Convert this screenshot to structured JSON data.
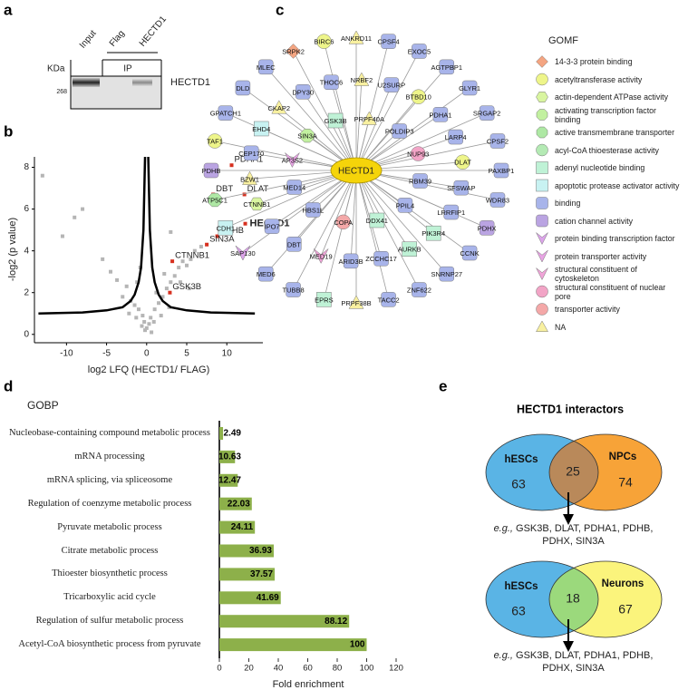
{
  "panel_labels": [
    "a",
    "b",
    "c",
    "d",
    "e"
  ],
  "blot": {
    "lanes": [
      "Input",
      "Flag",
      "HECTD1"
    ],
    "ip_label": "IP",
    "unit": "KDa",
    "marker": "268",
    "protein": "HECTD1"
  },
  "chart_data": [
    {
      "type": "scatter",
      "xlabel": "log2 LFQ (HECTD1/ FLAG)",
      "ylabel": "-log2 (p value)",
      "xlim": [
        -14,
        14.5
      ],
      "ylim": [
        -0.4,
        8.5
      ],
      "xticks": [
        -10,
        -5,
        0,
        5,
        10
      ],
      "yticks": [
        0,
        2,
        4,
        6,
        8
      ],
      "series": [
        {
          "color": "#b5b5b5",
          "x": [
            -13,
            -8,
            -9,
            -10.5,
            -5.5,
            -4.5,
            -3.7,
            -2.5,
            -3,
            -2,
            -1.5,
            -1,
            -0.5,
            -0.3,
            0,
            0.3,
            -0.2,
            0.5,
            1,
            1.5,
            2,
            2.5,
            3,
            3.5,
            4,
            4.5,
            5,
            5.5,
            6,
            3,
            5.3,
            4.2,
            2.2,
            1.2,
            -1.2,
            -0.8,
            0.6,
            -0.6,
            0.9,
            -1.3,
            1.8,
            -2.2,
            2.8,
            6.8,
            9
          ],
          "values": [
            7.6,
            6.0,
            5.6,
            4.7,
            3.6,
            3.0,
            2.6,
            2.3,
            1.8,
            1.6,
            1.4,
            1.2,
            0.9,
            0.6,
            0.3,
            0.5,
            0.2,
            0.8,
            1.2,
            1.5,
            1.8,
            2.2,
            2.5,
            2.8,
            3.2,
            3.5,
            3.3,
            3.6,
            4.0,
            4.9,
            2.2,
            2.5,
            2.9,
            2.0,
            2.5,
            3.2,
            0.1,
            0.4,
            0.6,
            0.8,
            0.9,
            1.0,
            1.3,
            4.2,
            6.3
          ]
        },
        {
          "color": "#d7301f",
          "x": [
            10.6,
            8.3,
            12.2,
            8.8,
            12.3,
            7.5,
            3.2,
            2.9
          ],
          "values": [
            8.1,
            6.7,
            6.7,
            4.7,
            5.3,
            4.3,
            3.5,
            2.0
          ],
          "point_labels": [
            "PDHA1",
            "DBT",
            "DLAT",
            "PDHB",
            "HECTD1",
            "SIN3A",
            "CTNNB1",
            "GSK3B"
          ],
          "highlight_index": 4
        }
      ],
      "threshold": {
        "color": "#000000",
        "x": [
          -13.5,
          -8,
          -5,
          -3,
          -2,
          -1.5,
          -1,
          -0.7,
          -0.4,
          -0.2,
          null,
          0.2,
          0.4,
          0.7,
          1,
          1.5,
          2,
          3,
          5,
          8,
          13.5
        ],
        "values": [
          1.0,
          1.05,
          1.15,
          1.3,
          1.6,
          1.9,
          2.5,
          3.2,
          5,
          8.5,
          null,
          8.5,
          5,
          3.2,
          2.5,
          1.9,
          1.6,
          1.3,
          1.15,
          1.05,
          1.0
        ]
      }
    },
    {
      "type": "barh",
      "title": "GOBP",
      "xlabel": "Fold enrichment",
      "color": "#8db04a",
      "categories": [
        "Nucleobase-containing compound metabolic process",
        "mRNA processing",
        "mRNA splicing, via spliceosome",
        "Regulation of coenzyme metabolic process",
        "Pyruvate metabolic process",
        "Citrate metabolic process",
        "Thioester biosynthetic process",
        "Tricarboxylic acid cycle",
        "Regulation of sulfur metabolic process",
        "Acetyl-CoA biosynthetic process from pyruvate"
      ],
      "values": [
        2.49,
        10.63,
        12.47,
        22.03,
        24.11,
        36.93,
        37.57,
        41.69,
        88.12,
        100
      ],
      "xlim": [
        0,
        120
      ],
      "xticks": [
        0,
        20,
        40,
        60,
        80,
        100,
        120
      ]
    }
  ],
  "network": {
    "center": "HECTD1",
    "legend_title": "GOMF",
    "categories": [
      {
        "label": "14-3-3 protein binding",
        "color": "#f4a582",
        "shape": "diamond"
      },
      {
        "label": "acetyltransferase activity",
        "color": "#eef58a",
        "shape": "circle"
      },
      {
        "label": "actin-dependent ATPase activity",
        "color": "#d9f5a0",
        "shape": "hexagon"
      },
      {
        "label": "activating transcription factor binding",
        "color": "#c2f0a0",
        "shape": "octagon"
      },
      {
        "label": "active transmembrane transporter",
        "color": "#aee8a4",
        "shape": "octagon"
      },
      {
        "label": "acyl-CoA thioesterase activity",
        "color": "#b4eab4",
        "shape": "circle"
      },
      {
        "label": "adenyl nucleotide binding",
        "color": "#bff2d6",
        "shape": "square"
      },
      {
        "label": "apoptotic protease activator activity",
        "color": "#c8f2f2",
        "shape": "square"
      },
      {
        "label": "binding",
        "color": "#a8b4ea",
        "shape": "rsquare"
      },
      {
        "label": "cation channel activity",
        "color": "#baa4e2",
        "shape": "rsquare"
      },
      {
        "label": "protein binding transcription factor",
        "color": "#dca4ea",
        "shape": "chevron"
      },
      {
        "label": "protein transporter activity",
        "color": "#e8a4e4",
        "shape": "chevron"
      },
      {
        "label": "structural constituent of cytoskeleton",
        "color": "#f0a4d8",
        "shape": "chevron"
      },
      {
        "label": "structural constituent of nuclear pore",
        "color": "#f2a4c6",
        "shape": "circle"
      },
      {
        "label": "transporter activity",
        "color": "#f4a8a8",
        "shape": "circle"
      },
      {
        "label": "NA",
        "color": "#f8f0a0",
        "shape": "triangle"
      }
    ],
    "nodes": [
      {
        "label": "PRPF40A",
        "category": 15
      },
      {
        "label": "POLDIP3",
        "category": 8
      },
      {
        "label": "NUP93",
        "category": 13
      },
      {
        "label": "RBM39",
        "category": 8
      },
      {
        "label": "PPIL4",
        "category": 8
      },
      {
        "label": "DDX41",
        "category": 6
      },
      {
        "label": "COPA",
        "category": 14
      },
      {
        "label": "HBS1L",
        "category": 8
      },
      {
        "label": "MED14",
        "category": 8
      },
      {
        "label": "AP3S2",
        "category": 11
      },
      {
        "label": "SIN3A",
        "category": 3
      },
      {
        "label": "GSK3B",
        "category": 6
      },
      {
        "label": "NRBF2",
        "category": 15
      },
      {
        "label": "U2SURP",
        "category": 8
      },
      {
        "label": "BTBD10",
        "category": 1
      },
      {
        "label": "PDHA1",
        "category": 8
      },
      {
        "label": "LARP4",
        "category": 8
      },
      {
        "label": "DLAT",
        "category": 1
      },
      {
        "label": "SFSWAP",
        "category": 8
      },
      {
        "label": "LRRFIP1",
        "category": 8
      },
      {
        "label": "PIK3R4",
        "category": 6
      },
      {
        "label": "AURKB",
        "category": 6
      },
      {
        "label": "ZCCHC17",
        "category": 8
      },
      {
        "label": "ARID3B",
        "category": 8
      },
      {
        "label": "MED19",
        "category": 12
      },
      {
        "label": "DBT",
        "category": 8
      },
      {
        "label": "IPO7",
        "category": 8
      },
      {
        "label": "CTNNB1",
        "category": 2
      },
      {
        "label": "BZW1",
        "category": 15
      },
      {
        "label": "CEP170",
        "category": 8
      },
      {
        "label": "EHD4",
        "category": 7
      },
      {
        "label": "CKAP2",
        "category": 15
      },
      {
        "label": "DPY30",
        "category": 8
      },
      {
        "label": "THOC6",
        "category": 8
      },
      {
        "label": "ANKRD11",
        "category": 15
      },
      {
        "label": "CPSF4",
        "category": 8
      },
      {
        "label": "EXOC5",
        "category": 8
      },
      {
        "label": "AGTPBP1",
        "category": 8
      },
      {
        "label": "GLYR1",
        "category": 8
      },
      {
        "label": "SRGAP2",
        "category": 8
      },
      {
        "label": "CPSF2",
        "category": 8
      },
      {
        "label": "PAXBP1",
        "category": 8
      },
      {
        "label": "WDR83",
        "category": 8
      },
      {
        "label": "PDHX",
        "category": 9
      },
      {
        "label": "CCNK",
        "category": 8
      },
      {
        "label": "SNRNP27",
        "category": 8
      },
      {
        "label": "ZNF622",
        "category": 8
      },
      {
        "label": "TACC2",
        "category": 8
      },
      {
        "label": "PRPF38B",
        "category": 15
      },
      {
        "label": "EPRS",
        "category": 6
      },
      {
        "label": "TUBB8",
        "category": 8
      },
      {
        "label": "MED6",
        "category": 8
      },
      {
        "label": "SAP130",
        "category": 10
      },
      {
        "label": "CDH1",
        "category": 7
      },
      {
        "label": "ATP5C1",
        "category": 4
      },
      {
        "label": "PDHB",
        "category": 9
      },
      {
        "label": "TAF1",
        "category": 1
      },
      {
        "label": "GPATCH1",
        "category": 8
      },
      {
        "label": "DLD",
        "category": 8
      },
      {
        "label": "MLEC",
        "category": 8
      },
      {
        "label": "SRPK2",
        "category": 0
      },
      {
        "label": "BIRC6",
        "category": 1
      }
    ]
  },
  "venn": {
    "title": "HECTD1 interactors",
    "diagrams": [
      {
        "left": "hESCs",
        "right": "NPCs",
        "left_only": 63,
        "shared": 25,
        "right_only": 74,
        "left_color": "#5ab4e5",
        "right_color": "#f7a338",
        "shared_color": "#b9895a",
        "note_prefix": "e.g.,",
        "note": "GSK3B, DLAT, PDHA1, PDHB, PDHX, SIN3A"
      },
      {
        "left": "hESCs",
        "right": "Neurons",
        "left_only": 63,
        "shared": 18,
        "right_only": 67,
        "left_color": "#5ab4e5",
        "right_color": "#fbf47c",
        "shared_color": "#9bd97c",
        "note_prefix": "e.g.,",
        "note": "GSK3B, DLAT, PDHA1, PDHB, PDHX, SIN3A"
      }
    ]
  }
}
